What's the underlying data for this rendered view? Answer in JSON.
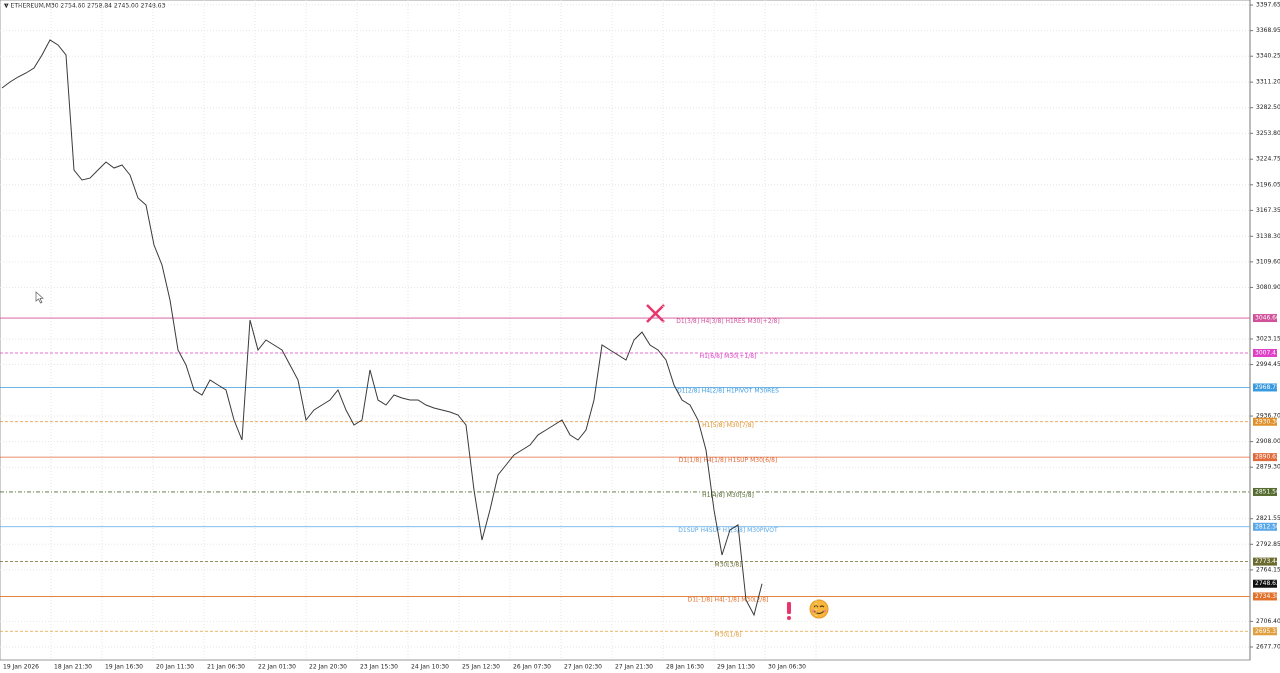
{
  "chart_data": {
    "type": "line",
    "title": "▼ ETHEREUM,M30  2754.60 2758.84 2745.00 2748.63",
    "date_labels": [
      "19 Jan 2026",
      "18 Jan 21:30",
      "19 Jan 16:30",
      "20 Jan 11:30",
      "21 Jan 06:30",
      "22 Jan 01:30",
      "22 Jan 20:30",
      "23 Jan 15:30",
      "24 Jan 10:30",
      "25 Jan 12:30",
      "26 Jan 07:30",
      "27 Jan 02:30",
      "27 Jan 21:30",
      "28 Jan 16:30",
      "29 Jan 11:30",
      "30 Jan 06:30"
    ],
    "color": "#3a3a3a",
    "values": [
      3304.6,
      3311.3,
      3316.9,
      3321.4,
      3327.0,
      3341.6,
      3358.4,
      3352.8,
      3341.6,
      3212.6,
      3201.4,
      3203.6,
      3212.6,
      3221.6,
      3214.9,
      3218.2,
      3207.0,
      3181.2,
      3173.4,
      3128.5,
      3106.1,
      3066.8,
      3010.8,
      2994.0,
      2965.9,
      2960.3,
      2977.1,
      2971.5,
      2965.9,
      2932.3,
      2909.8,
      3044.4,
      3010.8,
      3022.0,
      3016.4,
      3010.8,
      2994.0,
      2977.1,
      2932.3,
      2943.5,
      2949.1,
      2954.7,
      2965.9,
      2943.5,
      2926.7,
      2932.3,
      2988.4,
      2954.7,
      2949.1,
      2960.3,
      2956.9,
      2954.7,
      2954.7,
      2949.1,
      2945.7,
      2943.5,
      2941.2,
      2937.9,
      2926.7,
      2853.8,
      2797.7,
      2831.4,
      2870.6,
      2881.8,
      2893.0,
      2898.6,
      2904.2,
      2915.5,
      2921.1,
      2926.7,
      2932.3,
      2915.5,
      2909.8,
      2921.1,
      2954.7,
      3016.4,
      3010.8,
      3005.2,
      2999.6,
      3022.0,
      3030.9,
      3016.4,
      3010.8,
      2999.6,
      2971.5,
      2954.7,
      2949.1,
      2932.3,
      2898.6,
      2831.4,
      2780.9,
      2809.0,
      2814.6,
      2730.4,
      2713.6,
      2748.63
    ],
    "ylim": [
      2663.1,
      3403.3
    ],
    "yticks": [
      3397.65,
      3368.95,
      3340.25,
      {
        "value": 3311.2,
        "label": "3311.20"
      },
      {
        "value": 3282.5,
        "label": "3282.50"
      },
      {
        "value": 3253.8,
        "label": "3253.80"
      },
      3224.75,
      3196.05,
      3167.35,
      {
        "value": 3138.3,
        "label": "3138.30"
      },
      {
        "value": 3109.6,
        "label": "3109.60"
      },
      {
        "value": 3080.9,
        "label": "3080.90"
      },
      3023.15,
      2994.45,
      {
        "value": 2936.7,
        "label": "2936.70"
      },
      {
        "value": 2908.0,
        "label": "2908.00"
      },
      {
        "value": 2879.3,
        "label": "2879.30"
      },
      2821.55,
      2792.85,
      2764.15,
      {
        "value": 2706.4,
        "label": "2706.40"
      },
      {
        "value": 2677.7,
        "label": "2677.70"
      }
    ],
    "grid": true,
    "levels": [
      {
        "text": "D1[3/8] H4[3/8] H1RES M30[+2/8]",
        "value": 3046.6,
        "value_label": "3046.60",
        "color": "#d0509a",
        "dash": "none"
      },
      {
        "text": "H1[6/8] M30[+1/8]",
        "value": 3007.41,
        "color": "#e040c8",
        "dash": "3,2"
      },
      {
        "text": "D1[2/8] H4[2/8] H1PIVOT M30RES",
        "value": 2968.75,
        "color": "#3a9ae0",
        "dash": "none"
      },
      {
        "text": "H1[5/8] M30[7/8]",
        "value": 2930.3,
        "value_label": "2930.30",
        "color": "#e0902a",
        "dash": "3,2"
      },
      {
        "text": "D1[1/8] H4[1/8] H1SUP M30[6/8]",
        "value": 2890.62,
        "color": "#e06a3a",
        "dash": "none"
      },
      {
        "text": "H1[4/8] M30[5/8]",
        "value": 2851.56,
        "color": "#556b2f",
        "dash": "4,2,1,2"
      },
      {
        "text": "D1SUP H4SUP H1[3/8] M30PIVOT",
        "value": 2812.5,
        "value_label": "2812.50",
        "color": "#5aa8e8",
        "dash": "none"
      },
      {
        "text": "M30[3/8]",
        "value": 2773.44,
        "color": "#6b6b2f",
        "dash": "3,2"
      },
      {
        "text": "D1[-1/8] H4[-1/8] M30[2/8]",
        "value": 2734.38,
        "color": "#e0702a",
        "dash": "none"
      },
      {
        "text": "M30[1/8]",
        "value": 2695.31,
        "color": "#e0a040",
        "dash": "3,2"
      }
    ],
    "last_price": 2748.63
  }
}
